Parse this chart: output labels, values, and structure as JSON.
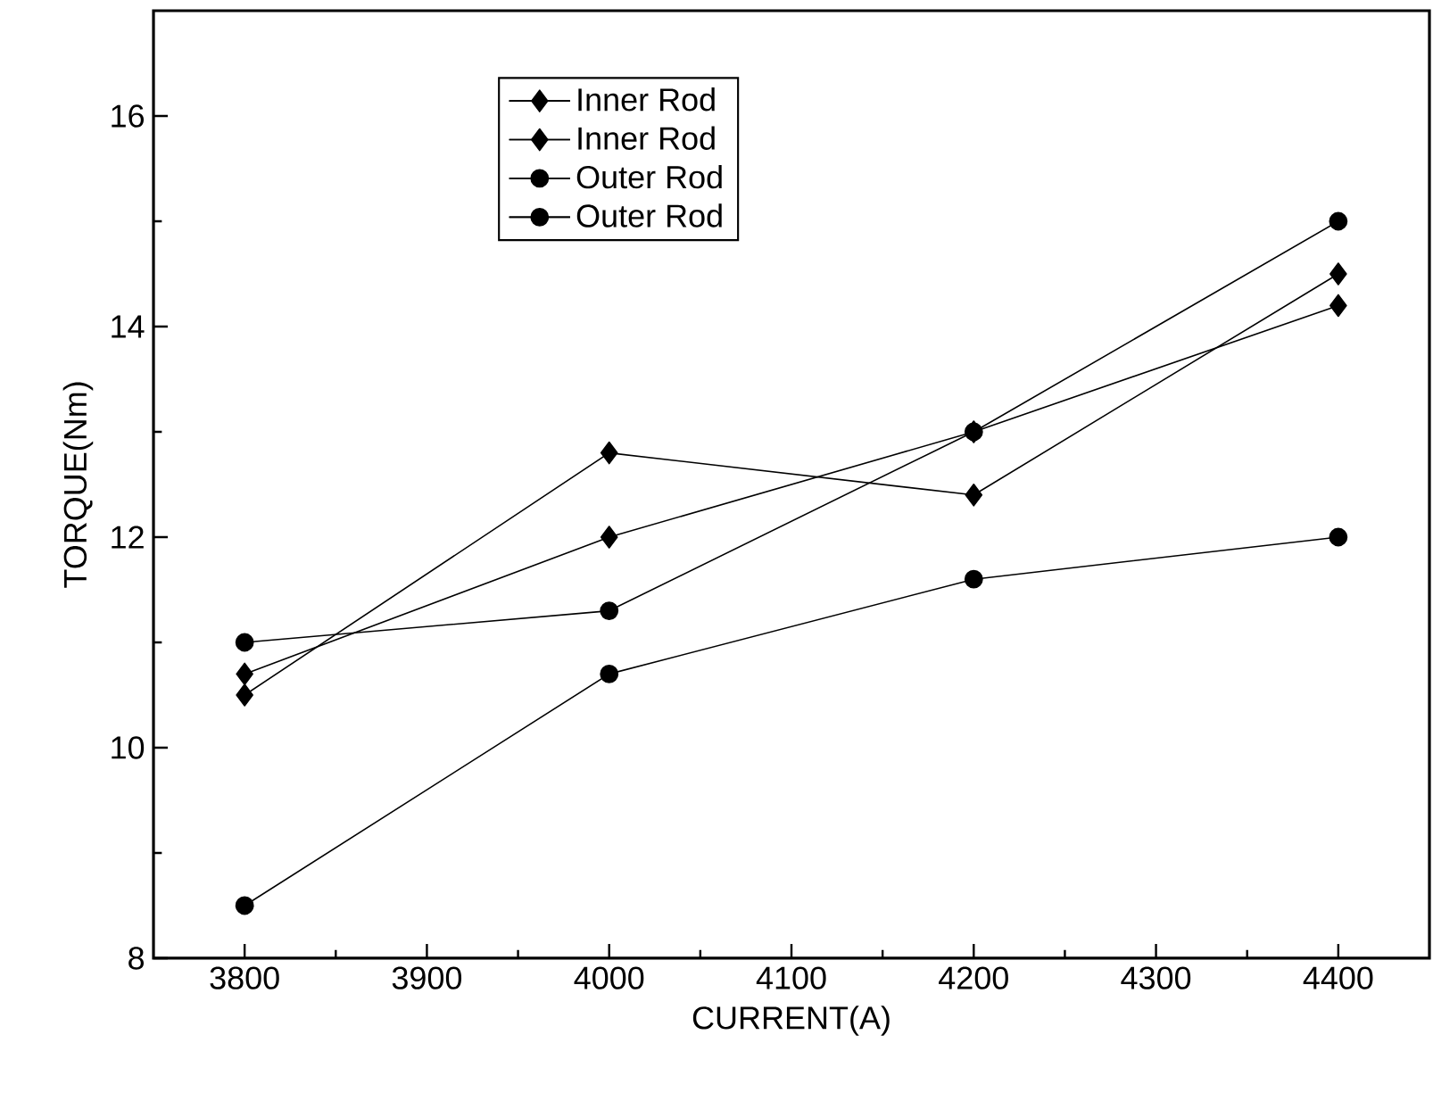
{
  "chart_data": {
    "type": "line",
    "xlabel": "CURRENT(A)",
    "ylabel": "TORQUE(Nm)",
    "x": [
      3800,
      4000,
      4200,
      4400
    ],
    "series": [
      {
        "name": "Inner Rod",
        "color": "#000000",
        "marker": "diamond",
        "values": [
          10.7,
          12.0,
          13.0,
          14.2
        ]
      },
      {
        "name": "Inner Rod",
        "color": "#000000",
        "marker": "diamond",
        "values": [
          10.5,
          12.8,
          12.4,
          14.5
        ]
      },
      {
        "name": "Outer Rod",
        "color": "#000000",
        "marker": "circle",
        "values": [
          11.0,
          11.3,
          13.0,
          15.0
        ]
      },
      {
        "name": "Outer Rod",
        "color": "#000000",
        "marker": "circle",
        "values": [
          8.5,
          10.7,
          11.6,
          12.0
        ]
      }
    ],
    "xlim": [
      3750,
      4450
    ],
    "ylim": [
      8,
      17
    ],
    "xticks": [
      3800,
      3900,
      4000,
      4100,
      4200,
      4300,
      4400
    ],
    "yticks": [
      8,
      10,
      12,
      14,
      16
    ],
    "grid": false,
    "legend": "top",
    "line_style": "solid"
  }
}
